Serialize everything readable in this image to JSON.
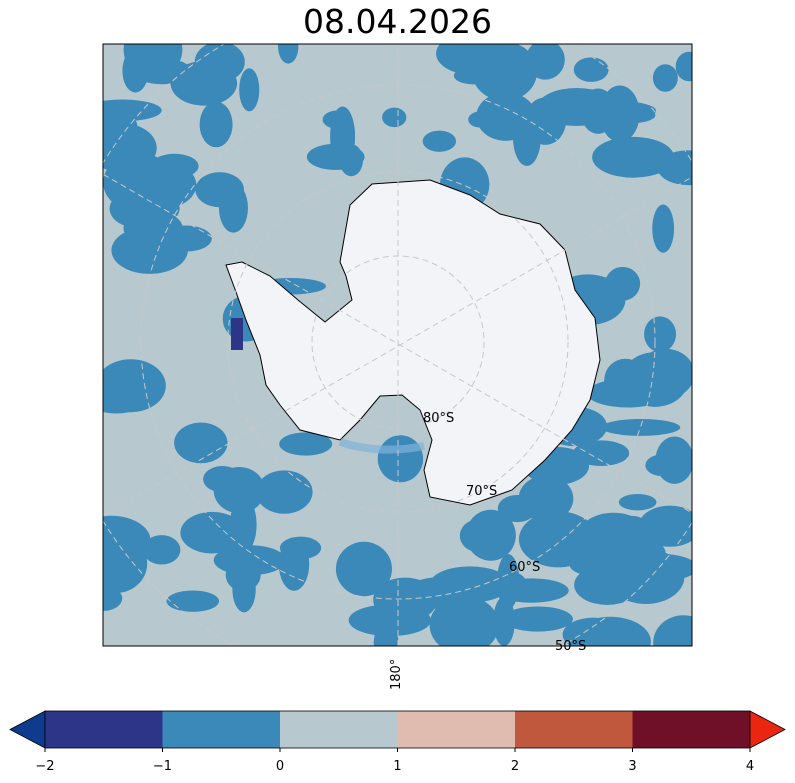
{
  "title": "08.04.2026",
  "map": {
    "projection": "south-polar-stereographic",
    "ocean_color": "#b7c9ce",
    "anomaly_color": "#3a89b9",
    "land_ice_color": "#f2f4f8",
    "latitude_labels": [
      "80°S",
      "70°S",
      "60°S",
      "50°S"
    ],
    "longitude_label": "180°"
  },
  "colorbar": {
    "ticks": [
      "−2",
      "−1",
      "0",
      "1",
      "2",
      "3",
      "4"
    ],
    "bins": [
      {
        "from": -2,
        "to": -1,
        "color": "#2c3587"
      },
      {
        "from": -1,
        "to": 0,
        "color": "#3a89b9"
      },
      {
        "from": 0,
        "to": 1,
        "color": "#b7c9ce"
      },
      {
        "from": 1,
        "to": 2,
        "color": "#dfbbb0"
      },
      {
        "from": 2,
        "to": 3,
        "color": "#bf583c"
      },
      {
        "from": 3,
        "to": 4,
        "color": "#6f0f28"
      }
    ],
    "under_color": "#0e3b8e",
    "over_color": "#ea2610"
  }
}
